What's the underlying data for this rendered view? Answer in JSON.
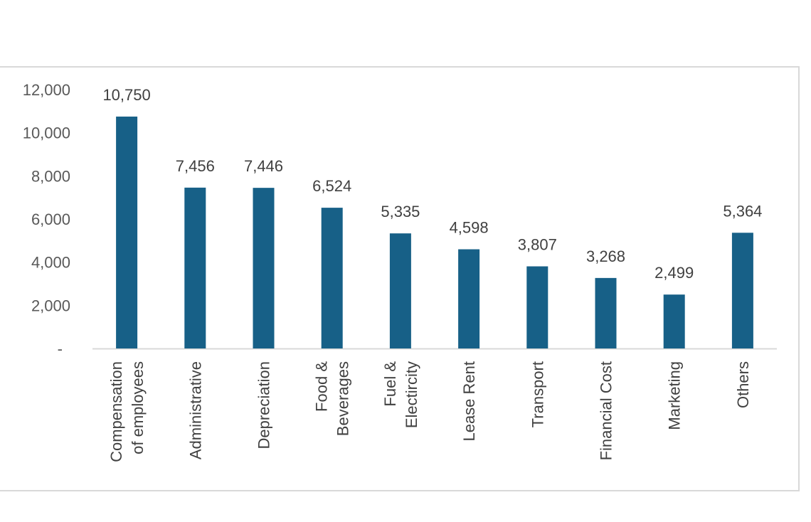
{
  "chart_data": {
    "type": "bar",
    "title": "",
    "xlabel": "",
    "ylabel": "",
    "categories": [
      [
        "Compensation",
        "of employees"
      ],
      [
        "Administrative"
      ],
      [
        "Depreciation"
      ],
      [
        "Food &",
        "Beverages"
      ],
      [
        "Fuel &",
        "Electircity"
      ],
      [
        "Lease Rent"
      ],
      [
        "Transport"
      ],
      [
        "Financial Cost"
      ],
      [
        "Marketing"
      ],
      [
        "Others"
      ]
    ],
    "values": [
      10750,
      7456,
      7446,
      6524,
      5335,
      4598,
      3807,
      3268,
      2499,
      5364
    ],
    "data_labels": [
      "10,750",
      "7,456",
      "7,446",
      "6,524",
      "5,335",
      "4,598",
      "3,807",
      "3,268",
      "2,499",
      "5,364"
    ],
    "ylim": [
      0,
      12000
    ],
    "yticks": [
      0,
      2000,
      4000,
      6000,
      8000,
      10000,
      12000
    ],
    "ytick_labels": [
      "-",
      "2,000",
      "4,000",
      "6,000",
      "8,000",
      "10,000",
      "12,000"
    ],
    "grid": false,
    "legend": "none",
    "bar_color": "#176087",
    "axis_color": "#d9d9d9"
  }
}
